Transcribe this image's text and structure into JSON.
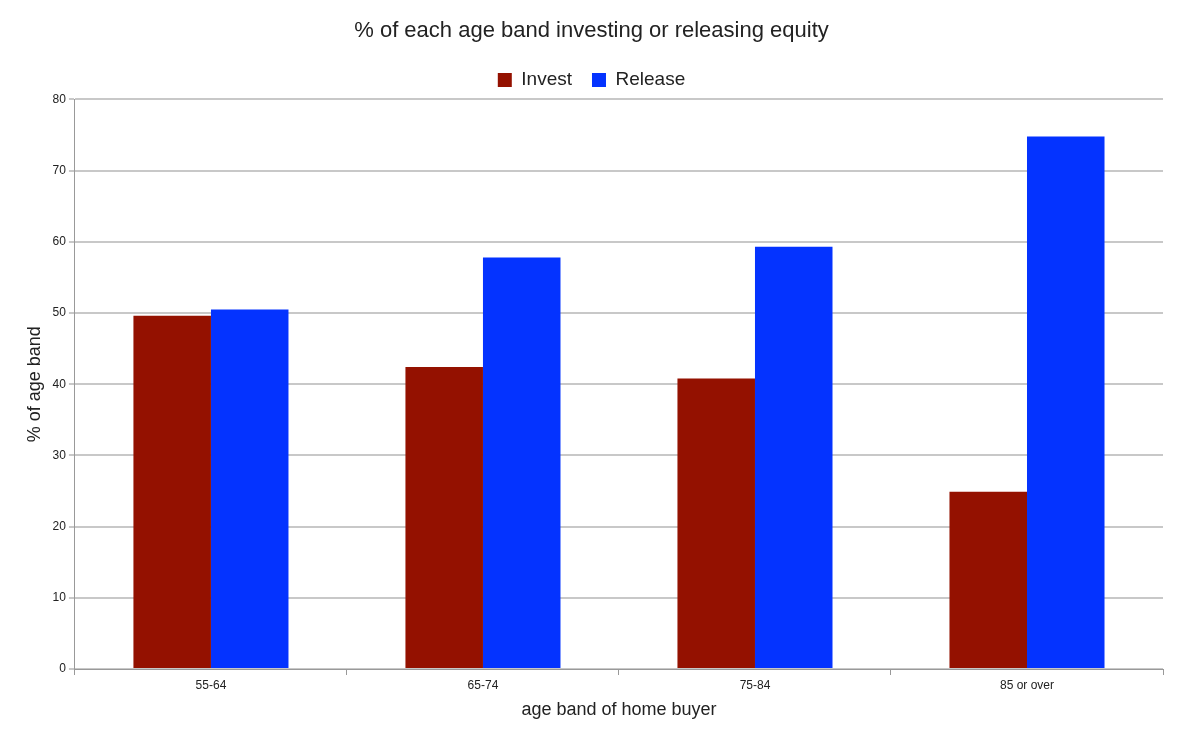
{
  "chart_data": {
    "type": "bar",
    "title": "% of each age band investing or releasing equity",
    "xlabel": "age band of home buyer",
    "ylabel": "% of age band",
    "categories": [
      "55-64",
      "65-74",
      "75-84",
      "85 or over"
    ],
    "series": [
      {
        "name": "Invest",
        "color": "#941100",
        "values": [
          49.6,
          42.4,
          40.8,
          24.9
        ]
      },
      {
        "name": "Release",
        "color": "#0433ff",
        "values": [
          50.5,
          57.8,
          59.3,
          74.8
        ]
      }
    ],
    "ylim": [
      0,
      80
    ],
    "yticks": [
      0,
      10,
      20,
      30,
      40,
      50,
      60,
      70,
      80
    ],
    "grid": "y",
    "legend": "top"
  }
}
